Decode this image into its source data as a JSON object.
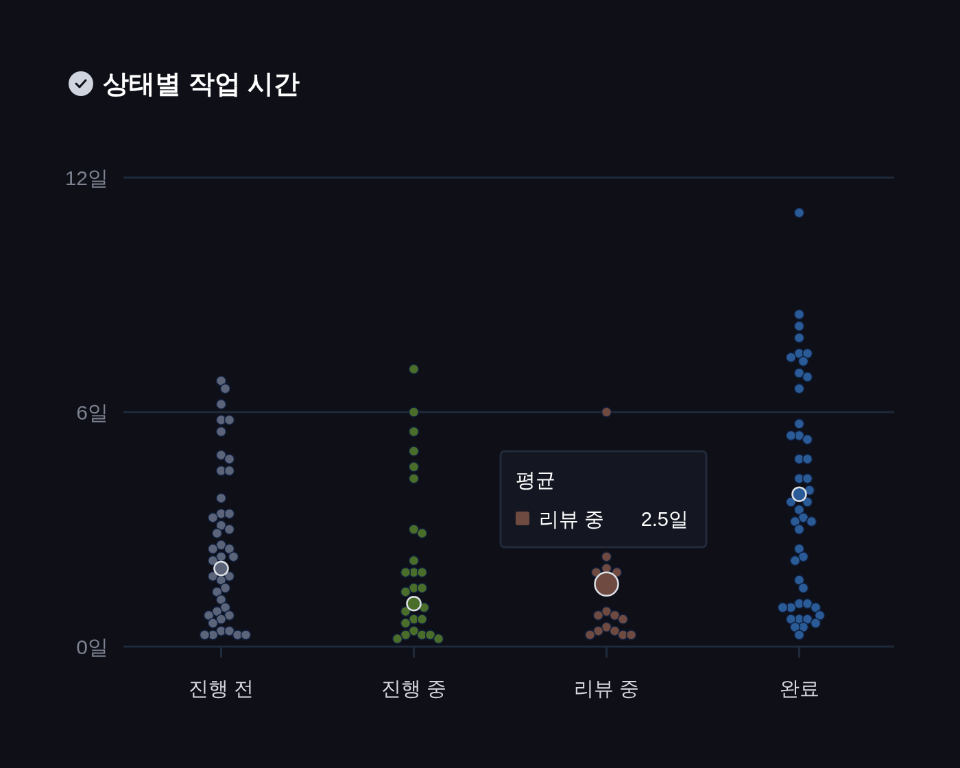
{
  "chart_data": {
    "type": "scatter",
    "title": "상태별 작업 시간",
    "categories": [
      "진행 전",
      "진행 중",
      "리뷰 중",
      "완료"
    ],
    "ylim": [
      0,
      12
    ],
    "yticks": [
      {
        "value": 0,
        "label": "0일"
      },
      {
        "value": 6,
        "label": "6일"
      },
      {
        "value": 12,
        "label": "12일"
      }
    ],
    "grid": "y",
    "marker": "circle",
    "series": [
      {
        "color": "#5c6479",
        "x": [
          "진행 전",
          "진행 전",
          "진행 전",
          "진행 전",
          "진행 전",
          "진행 전",
          "진행 전",
          "진행 전",
          "진행 전",
          "진행 전",
          "진행 전",
          "진행 전",
          "진행 전",
          "진행 전",
          "진행 전",
          "진행 전",
          "진행 전",
          "진행 전",
          "진행 전",
          "진행 전",
          "진행 전",
          "진행 전",
          "진행 전",
          "진행 전",
          "진행 전",
          "진행 전",
          "진행 전",
          "진행 전",
          "진행 전",
          "진행 전",
          "진행 전",
          "진행 전",
          "진행 전",
          "진행 전",
          "진행 전",
          "진행 전",
          "진행 전",
          "진행 전",
          "진행 전",
          "진행 전",
          "진행 전"
        ],
        "values": [
          6.8,
          6.6,
          6.2,
          5.8,
          5.8,
          5.5,
          4.9,
          4.8,
          4.5,
          4.5,
          3.8,
          3.4,
          3.4,
          3.3,
          3.1,
          3.0,
          2.9,
          2.6,
          2.5,
          2.5,
          2.3,
          2.3,
          2.2,
          1.8,
          1.8,
          1.7,
          1.5,
          1.4,
          1.2,
          1.0,
          0.9,
          0.8,
          0.8,
          0.7,
          0.6,
          0.4,
          0.4,
          0.3,
          0.3,
          0.3,
          0.3
        ]
      },
      {
        "color": "#4a6e2a",
        "x": [
          "진행 중",
          "진행 중",
          "진행 중",
          "진행 중",
          "진행 중",
          "진행 중",
          "진행 중",
          "진행 중",
          "진행 중",
          "진행 중",
          "진행 중",
          "진행 중",
          "진행 중",
          "진행 중",
          "진행 중",
          "진행 중",
          "진행 중",
          "진행 중",
          "진행 중",
          "진행 중",
          "진행 중",
          "진행 중",
          "진행 중",
          "진행 중",
          "진행 중",
          "진행 중"
        ],
        "values": [
          7.1,
          6.0,
          5.5,
          5.0,
          4.6,
          4.3,
          3.0,
          2.9,
          2.2,
          1.9,
          1.9,
          1.9,
          1.5,
          1.5,
          1.4,
          1.0,
          0.9,
          0.7,
          0.7,
          0.6,
          0.4,
          0.3,
          0.3,
          0.3,
          0.2,
          0.2
        ]
      },
      {
        "color": "#6e4a40",
        "x": [
          "리뷰 중",
          "리뷰 중",
          "리뷰 중",
          "리뷰 중",
          "리뷰 중",
          "리뷰 중",
          "리뷰 중",
          "리뷰 중",
          "리뷰 중",
          "리뷰 중",
          "리뷰 중",
          "리뷰 중",
          "리뷰 중",
          "리뷰 중",
          "리뷰 중"
        ],
        "values": [
          6.0,
          2.3,
          2.0,
          1.9,
          1.9,
          0.9,
          0.8,
          0.8,
          0.7,
          0.5,
          0.4,
          0.4,
          0.3,
          0.3,
          0.3
        ]
      },
      {
        "color": "#2a5b96",
        "x": [
          "완료",
          "완료",
          "완료",
          "완료",
          "완료",
          "완료",
          "완료",
          "완료",
          "완료",
          "완료",
          "완료",
          "완료",
          "완료",
          "완료",
          "완료",
          "완료",
          "완료",
          "완료",
          "완료",
          "완료",
          "완료",
          "완료",
          "완료",
          "완료",
          "완료",
          "완료",
          "완료",
          "완료",
          "완료",
          "완료",
          "완료",
          "완료",
          "완료",
          "완료",
          "완료",
          "완료",
          "완료",
          "완료",
          "완료",
          "완료",
          "완료",
          "완료",
          "완료",
          "완료",
          "완료"
        ],
        "values": [
          11.1,
          8.5,
          8.2,
          7.9,
          7.5,
          7.5,
          7.4,
          7.3,
          7.0,
          6.9,
          6.6,
          5.7,
          5.4,
          5.3,
          5.4,
          4.8,
          4.8,
          4.3,
          4.3,
          4.0,
          3.7,
          3.7,
          3.5,
          3.3,
          3.2,
          3.2,
          3.0,
          2.5,
          2.3,
          2.2,
          1.7,
          1.5,
          1.1,
          1.1,
          1.0,
          1.0,
          1.0,
          0.7,
          0.7,
          0.7,
          0.8,
          0.6,
          0.5,
          0.5,
          0.3
        ]
      },
      {
        "name": "평균",
        "x": [
          "진행 전",
          "진행 중",
          "리뷰 중",
          "완료"
        ],
        "values": [
          2.0,
          1.1,
          1.6,
          3.9
        ],
        "sizes": [
          0.35,
          0.35,
          1,
          0.35
        ],
        "colors": [
          "#5c6479",
          "#4a6e2a",
          "#6e4a40",
          "#2a5b96"
        ]
      }
    ],
    "annotations": [
      "리뷰 중",
      "2.5일"
    ]
  }
}
